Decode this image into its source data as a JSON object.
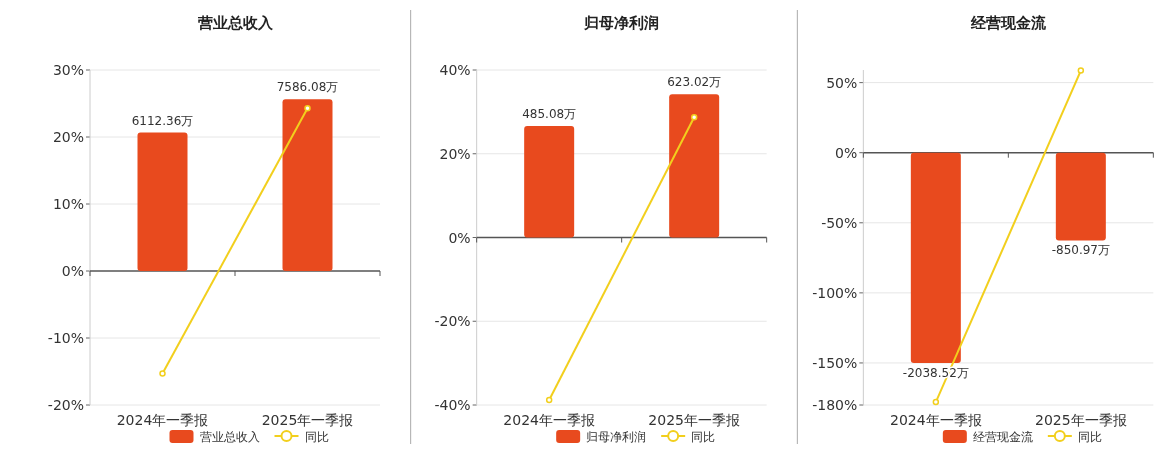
{
  "chart_data": [
    {
      "type": "bar",
      "title": "营业总收入",
      "categories": [
        "2024年一季报",
        "2025年一季报"
      ],
      "ylim": [
        -20,
        30
      ],
      "yticks": [
        {
          "value": 30,
          "label": "30%"
        },
        {
          "value": 20,
          "label": "20%"
        },
        {
          "value": 10,
          "label": "10%"
        },
        {
          "value": 0,
          "label": "0%"
        },
        {
          "value": -10,
          "label": "-10%"
        },
        {
          "value": -20,
          "label": "-20%"
        }
      ],
      "y2lim": [
        -5916,
        8874
      ],
      "tick_labels": "xy",
      "grid": "y",
      "legend": "bottom",
      "series": [
        {
          "name": "营业总收入",
          "type": "bar",
          "axis": "y2",
          "color": "#e84a1e",
          "values": [
            6112.36,
            7586.08
          ],
          "value_labels": [
            "6112.36万",
            "7586.08万"
          ]
        },
        {
          "name": "同比",
          "type": "line",
          "color": "#f2cf1d",
          "marker": "circle",
          "values": [
            -15.3,
            24.3
          ]
        }
      ]
    },
    {
      "type": "bar",
      "title": "归母净利润",
      "categories": [
        "2024年一季报",
        "2025年一季报"
      ],
      "ylim": [
        -40,
        40
      ],
      "yticks": [
        {
          "value": 40,
          "label": "40%"
        },
        {
          "value": 20,
          "label": "20%"
        },
        {
          "value": 0,
          "label": "0%"
        },
        {
          "value": -20,
          "label": "-20%"
        },
        {
          "value": -40,
          "label": "-40%"
        }
      ],
      "y2lim": [
        -728,
        728
      ],
      "tick_labels": "xy",
      "grid": "y",
      "legend": "bottom",
      "series": [
        {
          "name": "归母净利润",
          "type": "bar",
          "axis": "y2",
          "color": "#e84a1e",
          "values": [
            485.08,
            623.02
          ],
          "value_labels": [
            "485.08万",
            "623.02万"
          ]
        },
        {
          "name": "同比",
          "type": "line",
          "color": "#f2cf1d",
          "marker": "circle",
          "values": [
            -38.8,
            28.7
          ]
        }
      ]
    },
    {
      "type": "bar",
      "title": "经营现金流",
      "categories": [
        "2024年一季报",
        "2025年一季报"
      ],
      "ylim": [
        -180,
        59
      ],
      "yticks": [
        {
          "value": 50,
          "label": "50%"
        },
        {
          "value": 0,
          "label": "0%"
        },
        {
          "value": -50,
          "label": "-50%"
        },
        {
          "value": -100,
          "label": "-100%"
        },
        {
          "value": -150,
          "label": "-150%"
        },
        {
          "value": -180,
          "label": "-180%"
        }
      ],
      "y2lim": [
        -2446,
        802
      ],
      "tick_labels": "xy",
      "grid": "y",
      "legend": "bottom",
      "series": [
        {
          "name": "经营现金流",
          "type": "bar",
          "axis": "y2",
          "color": "#e84a1e",
          "values": [
            -2038.52,
            -850.97
          ],
          "value_labels": [
            "-2038.52万",
            "-850.97万"
          ]
        },
        {
          "name": "同比",
          "type": "line",
          "color": "#f2cf1d",
          "marker": "circle",
          "values": [
            -177.9,
            58.6
          ]
        }
      ]
    }
  ]
}
